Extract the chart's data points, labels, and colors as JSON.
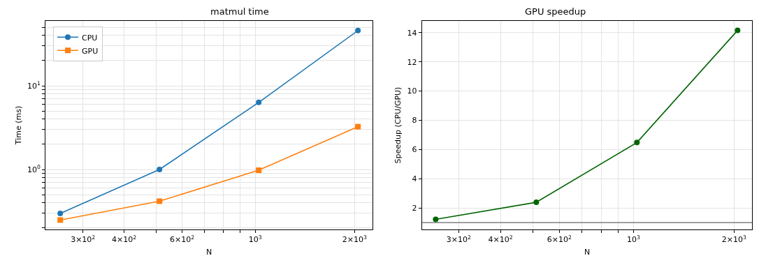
{
  "chart_data": [
    {
      "type": "line",
      "title": "matmul time",
      "xlabel": "N",
      "ylabel": "Time (ms)",
      "x": [
        256,
        512,
        1024,
        2048
      ],
      "series": [
        {
          "name": "CPU",
          "color": "#1f77b4",
          "marker": "circle",
          "values": [
            0.298,
            1.0,
            6.34,
            45.8
          ]
        },
        {
          "name": "GPU",
          "color": "#ff7f0e",
          "marker": "square",
          "values": [
            0.249,
            0.418,
            0.98,
            3.25
          ]
        }
      ],
      "log": "xy",
      "xlim": [
        231,
        2270
      ],
      "ylim": [
        0.192,
        59.7
      ],
      "xticks": [
        {
          "value": 300,
          "label": "3×10$^{2}$"
        },
        {
          "value": 400,
          "label": "4×10$^{2}$"
        },
        {
          "value": 500,
          "label": null
        },
        {
          "value": 600,
          "label": "6×10$^{2}$"
        },
        {
          "value": 700,
          "label": null
        },
        {
          "value": 800,
          "label": null
        },
        {
          "value": 900,
          "label": null
        },
        {
          "value": 1000,
          "label": "10$^{3}$"
        },
        {
          "value": 2000,
          "label": "2×10$^{3}$"
        }
      ],
      "yticks": [
        {
          "value": 0.2,
          "label": null
        },
        {
          "value": 0.3,
          "label": null
        },
        {
          "value": 0.4,
          "label": null
        },
        {
          "value": 0.5,
          "label": null
        },
        {
          "value": 0.6,
          "label": null
        },
        {
          "value": 0.7,
          "label": null
        },
        {
          "value": 0.8,
          "label": null
        },
        {
          "value": 0.9,
          "label": null
        },
        {
          "value": 1,
          "label": "10$^{0}$"
        },
        {
          "value": 2,
          "label": null
        },
        {
          "value": 3,
          "label": null
        },
        {
          "value": 4,
          "label": null
        },
        {
          "value": 5,
          "label": null
        },
        {
          "value": 6,
          "label": null
        },
        {
          "value": 7,
          "label": null
        },
        {
          "value": 8,
          "label": null
        },
        {
          "value": 9,
          "label": null
        },
        {
          "value": 10,
          "label": "10$^{1}$"
        },
        {
          "value": 20,
          "label": null
        },
        {
          "value": 30,
          "label": null
        },
        {
          "value": 40,
          "label": null
        },
        {
          "value": 50,
          "label": null
        }
      ],
      "grid": true,
      "legend": "top left"
    },
    {
      "type": "line",
      "title": "GPU speedup",
      "xlabel": "N",
      "ylabel": "Speedup (CPU/GPU)",
      "x": [
        256,
        512,
        1024,
        2048
      ],
      "series": [
        {
          "color": "#006400",
          "marker": "circle",
          "values": [
            1.22,
            2.39,
            6.48,
            14.15
          ]
        }
      ],
      "log": "x",
      "xlim": [
        233,
        2265
      ],
      "ylim": [
        0.53,
        14.8
      ],
      "xticks": [
        {
          "value": 300,
          "label": "3×10$^{2}$"
        },
        {
          "value": 400,
          "label": "4×10$^{2}$"
        },
        {
          "value": 500,
          "label": null
        },
        {
          "value": 600,
          "label": "6×10$^{2}$"
        },
        {
          "value": 700,
          "label": null
        },
        {
          "value": 800,
          "label": null
        },
        {
          "value": 900,
          "label": null
        },
        {
          "value": 1000,
          "label": "10$^{3}$"
        },
        {
          "value": 2000,
          "label": "2×10$^{3}$"
        }
      ],
      "yticks": [
        2,
        4,
        6,
        8,
        10,
        12,
        14
      ],
      "ref_lines": [
        {
          "axis": "y",
          "value": 1,
          "color": "#404040"
        }
      ],
      "grid": true,
      "legend": false
    }
  ]
}
